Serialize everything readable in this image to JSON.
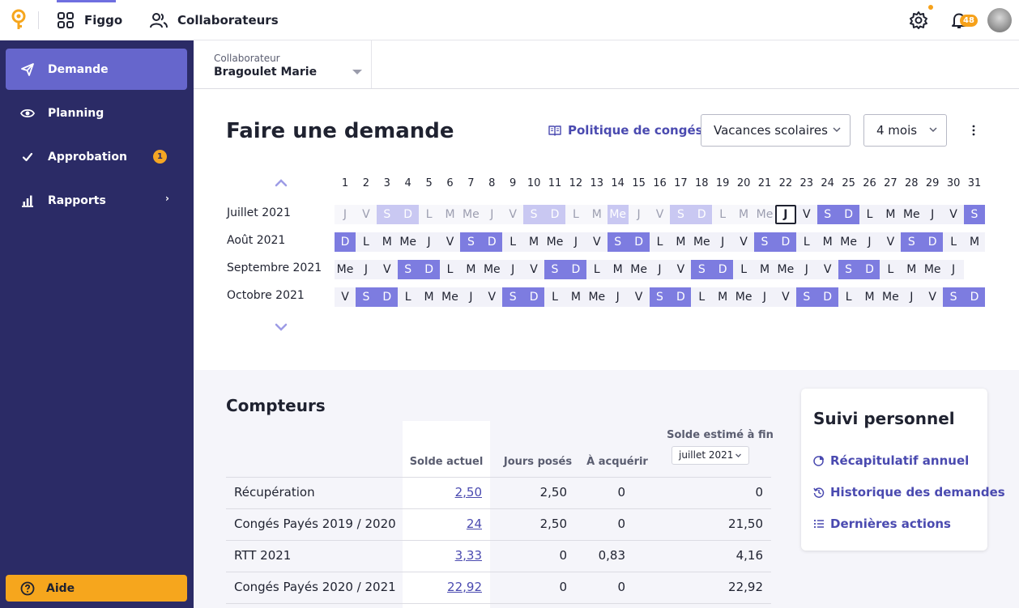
{
  "topbar": {
    "app_name": "Figgo",
    "collab_label": "Collaborateurs",
    "notification_count": "48"
  },
  "sidebar": {
    "items": [
      {
        "label": "Demande",
        "icon": "send-icon"
      },
      {
        "label": "Planning",
        "icon": "eye-icon"
      },
      {
        "label": "Approbation",
        "icon": "check-icon",
        "badge": "1"
      },
      {
        "label": "Rapports",
        "icon": "chart-icon"
      }
    ],
    "help_label": "Aide"
  },
  "collaborator": {
    "label": "Collaborateur",
    "value": "Bragoulet Marie"
  },
  "main": {
    "title": "Faire une demande",
    "policy_link": "Politique de congés",
    "vacation_select": "Vacances scolaires",
    "months_select": "4 mois"
  },
  "calendar": {
    "days": [
      "1",
      "2",
      "3",
      "4",
      "5",
      "6",
      "7",
      "8",
      "9",
      "10",
      "11",
      "12",
      "13",
      "14",
      "15",
      "16",
      "17",
      "18",
      "19",
      "20",
      "21",
      "22",
      "23",
      "24",
      "25",
      "26",
      "27",
      "28",
      "29",
      "30",
      "31"
    ],
    "months": [
      {
        "label": "Juillet 2021",
        "days": [
          "J",
          "V",
          "S",
          "D",
          "L",
          "M",
          "Me",
          "J",
          "V",
          "S",
          "D",
          "L",
          "M",
          "Me",
          "J",
          "V",
          "S",
          "D",
          "L",
          "M",
          "Me",
          "J",
          "V",
          "S",
          "D",
          "L",
          "M",
          "Me",
          "J",
          "V",
          "S"
        ],
        "today_index": 21
      },
      {
        "label": "Août 2021",
        "days": [
          "D",
          "L",
          "M",
          "Me",
          "J",
          "V",
          "S",
          "D",
          "L",
          "M",
          "Me",
          "J",
          "V",
          "S",
          "D",
          "L",
          "M",
          "Me",
          "J",
          "V",
          "S",
          "D",
          "L",
          "M",
          "Me",
          "J",
          "V",
          "S",
          "D",
          "L",
          "M"
        ]
      },
      {
        "label": "Septembre 2021",
        "days": [
          "Me",
          "J",
          "V",
          "S",
          "D",
          "L",
          "M",
          "Me",
          "J",
          "V",
          "S",
          "D",
          "L",
          "M",
          "Me",
          "J",
          "V",
          "S",
          "D",
          "L",
          "M",
          "Me",
          "J",
          "V",
          "S",
          "D",
          "L",
          "M",
          "Me",
          "J"
        ]
      },
      {
        "label": "Octobre 2021",
        "days": [
          "V",
          "S",
          "D",
          "L",
          "M",
          "Me",
          "J",
          "V",
          "S",
          "D",
          "L",
          "M",
          "Me",
          "J",
          "V",
          "S",
          "D",
          "L",
          "M",
          "Me",
          "J",
          "V",
          "S",
          "D",
          "L",
          "M",
          "Me",
          "J",
          "V",
          "S",
          "D"
        ]
      }
    ]
  },
  "counters": {
    "title": "Compteurs",
    "headers": {
      "solde_actuel": "Solde actuel",
      "jours_poses": "Jours posés",
      "a_acquerir": "À acquérir",
      "solde_estime": "Solde estimé à fin",
      "date_select": "juillet 2021"
    },
    "rows": [
      {
        "label": "Récupération",
        "solde": "2,50",
        "poses": "2,50",
        "acquerir": "0",
        "estime": "0"
      },
      {
        "label": "Congés Payés 2019 / 2020",
        "solde": "24",
        "poses": "2,50",
        "acquerir": "0",
        "estime": "21,50"
      },
      {
        "label": "RTT 2021",
        "solde": "3,33",
        "poses": "0",
        "acquerir": "0,83",
        "estime": "4,16"
      },
      {
        "label": "Congés Payés 2020 / 2021",
        "solde": "22,92",
        "poses": "0",
        "acquerir": "0",
        "estime": "22,92"
      }
    ]
  },
  "suivi": {
    "title": "Suivi personnel",
    "links": [
      "Récapitulatif annuel",
      "Historique des demandes",
      "Dernières actions"
    ]
  },
  "colors": {
    "sidebar_bg": "#2b2b66",
    "sidebar_active": "#6666cc",
    "accent": "#4a4ab0",
    "weekend": "#7d7ce0",
    "warning": "#f6a61d"
  }
}
